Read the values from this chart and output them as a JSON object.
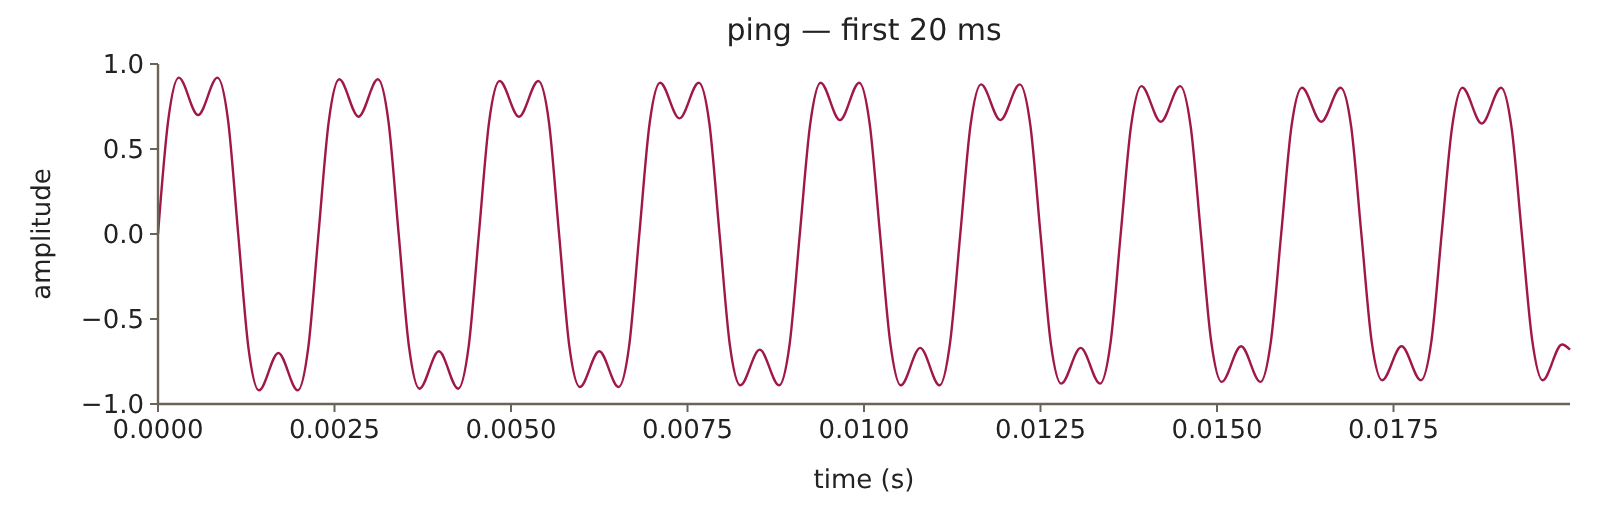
{
  "chart_data": {
    "type": "line",
    "title": "ping — first 20 ms",
    "xlabel": "time (s)",
    "ylabel": "amplitude",
    "xlim": [
      0,
      0.02
    ],
    "ylim": [
      -1,
      1
    ],
    "xticks": [
      {
        "value": 0,
        "label": "0.0000"
      },
      {
        "value": 0.0025,
        "label": "0.0025"
      },
      {
        "value": 0.005,
        "label": "0.0050"
      },
      {
        "value": 0.0075,
        "label": "0.0075"
      },
      {
        "value": 0.01,
        "label": "0.0100"
      },
      {
        "value": 0.0125,
        "label": "0.0125"
      },
      {
        "value": 0.015,
        "label": "0.0150"
      },
      {
        "value": 0.0175,
        "label": "0.0175"
      }
    ],
    "yticks": [
      {
        "value": -1,
        "label": "−1.0"
      },
      {
        "value": -0.5,
        "label": "−0.5"
      },
      {
        "value": 0,
        "label": "0.0"
      },
      {
        "value": 0.5,
        "label": "0.5"
      },
      {
        "value": 1,
        "label": "1.0"
      }
    ],
    "grid": false,
    "marker": "none",
    "line_style": "solid",
    "series": [
      {
        "color": "#a0174a",
        "x": [
          0,
          0.000145,
          0.000294,
          0.000568,
          0.000842,
          0.000992,
          0.001136,
          0.001281,
          0.00143,
          0.001705,
          0.001979,
          0.002128,
          0.002273,
          0.002418,
          0.002567,
          0.002841,
          0.003115,
          0.003265,
          0.003409,
          0.003554,
          0.003703,
          0.003978,
          0.004252,
          0.004401,
          0.004545,
          0.00469,
          0.004839,
          0.005113,
          0.005387,
          0.005537,
          0.005681,
          0.005826,
          0.005975,
          0.00625,
          0.006524,
          0.006673,
          0.006818,
          0.006963,
          0.007112,
          0.007386,
          0.00766,
          0.00781,
          0.007954,
          0.008099,
          0.008248,
          0.008523,
          0.008797,
          0.008946,
          0.009091,
          0.009236,
          0.009385,
          0.009659,
          0.009933,
          0.010083,
          0.010227,
          0.010372,
          0.010521,
          0.010796,
          0.01107,
          0.011219,
          0.011364,
          0.011509,
          0.011658,
          0.011932,
          0.012206,
          0.012356,
          0.0125,
          0.012645,
          0.012794,
          0.013069,
          0.013343,
          0.013492,
          0.013636,
          0.013781,
          0.01393,
          0.014204,
          0.014478,
          0.014628,
          0.014772,
          0.014917,
          0.015066,
          0.015341,
          0.015615,
          0.015764,
          0.015909,
          0.016054,
          0.016203,
          0.016477,
          0.016751,
          0.016901,
          0.017045,
          0.01719,
          0.017339,
          0.017614,
          0.017888,
          0.018037,
          0.018182,
          0.018327,
          0.018476,
          0.01875,
          0.019024,
          0.019174,
          0.019318,
          0.019463,
          0.019612,
          0.019887,
          0.02
        ],
        "values": [
          0,
          0.67,
          0.92,
          0.7,
          0.92,
          0.67,
          0,
          -0.67,
          -0.92,
          -0.7,
          -0.92,
          -0.67,
          0,
          0.66,
          0.91,
          0.69,
          0.91,
          0.66,
          0,
          -0.66,
          -0.91,
          -0.69,
          -0.91,
          -0.66,
          0,
          0.66,
          0.9,
          0.69,
          0.9,
          0.66,
          0,
          -0.66,
          -0.9,
          -0.69,
          -0.9,
          -0.66,
          0,
          0.65,
          0.89,
          0.68,
          0.89,
          0.65,
          0,
          -0.65,
          -0.89,
          -0.68,
          -0.89,
          -0.65,
          0,
          0.64,
          0.89,
          0.67,
          0.89,
          0.64,
          0,
          -0.64,
          -0.89,
          -0.67,
          -0.89,
          -0.64,
          0,
          0.64,
          0.88,
          0.67,
          0.88,
          0.64,
          0,
          -0.64,
          -0.88,
          -0.67,
          -0.88,
          -0.64,
          0,
          0.63,
          0.87,
          0.66,
          0.87,
          0.63,
          0,
          -0.63,
          -0.87,
          -0.66,
          -0.87,
          -0.63,
          0,
          0.63,
          0.86,
          0.66,
          0.86,
          0.63,
          0,
          -0.63,
          -0.86,
          -0.66,
          -0.86,
          -0.63,
          0,
          0.62,
          0.86,
          0.65,
          0.86,
          0.62,
          0,
          -0.62,
          -0.86,
          -0.65,
          -0.68
        ]
      }
    ]
  }
}
